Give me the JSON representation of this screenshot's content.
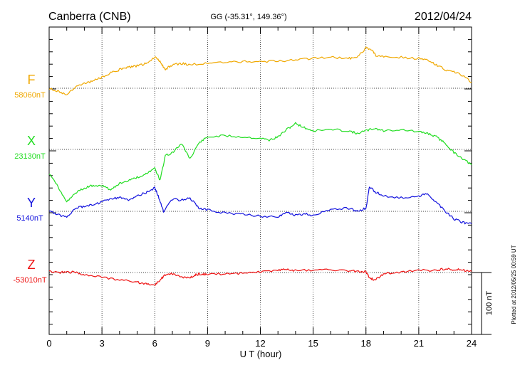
{
  "header": {
    "station": "Canberra (CNB)",
    "coords": "GG (-35.31°, 149.36°)",
    "date": "2012/04/24"
  },
  "footer": {
    "plotted": "Plotted at 2012/05/25 00:59 UT",
    "scale_label": "100 nT"
  },
  "chart_data": {
    "type": "line",
    "title": "Canberra (CNB)",
    "xlabel": "U T (hour)",
    "ylabel": "",
    "xlim": [
      0,
      24
    ],
    "x_ticks": [
      "0",
      "3",
      "6",
      "9",
      "12",
      "15",
      "18",
      "21",
      "24"
    ],
    "grid": true,
    "scale_bar_nT": 100,
    "y_units": "nT (100 nT per scale bar, traces offset by component)",
    "series": [
      {
        "name": "F",
        "baseline_label": "58060nT",
        "color": "#f0a800",
        "baseline_nT": 58060,
        "x": [
          0,
          0.5,
          1,
          1.5,
          2,
          2.5,
          3,
          3.5,
          4,
          4.5,
          5,
          5.5,
          6,
          6.3,
          6.6,
          7,
          7.5,
          8,
          9,
          10,
          11,
          12,
          13,
          14,
          15,
          16,
          17,
          17.5,
          18,
          18.3,
          18.6,
          19,
          20,
          21,
          21.5,
          22,
          22.5,
          23,
          23.5,
          24
        ],
        "values": [
          58060,
          58055,
          58050,
          58062,
          58068,
          58072,
          58078,
          58085,
          58090,
          58094,
          58096,
          58100,
          58110,
          58103,
          58090,
          58098,
          58100,
          58098,
          58100,
          58102,
          58103,
          58103,
          58104,
          58106,
          58108,
          58110,
          58108,
          58110,
          58125,
          58122,
          58112,
          58112,
          58110,
          58108,
          58106,
          58098,
          58090,
          58086,
          58080,
          58070
        ]
      },
      {
        "name": "X",
        "baseline_label": "23130nT",
        "color": "#22dd22",
        "baseline_nT": 23130,
        "x": [
          0,
          0.5,
          1,
          1.5,
          2,
          2.5,
          3,
          3.5,
          4,
          4.5,
          5,
          5.5,
          6,
          6.3,
          6.6,
          7,
          7.5,
          8,
          8.5,
          9,
          10,
          11,
          12,
          12.5,
          13,
          13.5,
          14,
          14.5,
          15,
          16,
          17,
          17.5,
          18,
          18.5,
          19,
          20,
          21,
          21.5,
          22,
          22.5,
          23,
          23.5,
          24
        ],
        "values": [
          23090,
          23070,
          23045,
          23060,
          23068,
          23072,
          23072,
          23064,
          23075,
          23080,
          23085,
          23090,
          23100,
          23080,
          23120,
          23125,
          23140,
          23115,
          23140,
          23150,
          23152,
          23150,
          23148,
          23145,
          23150,
          23162,
          23172,
          23165,
          23160,
          23162,
          23160,
          23156,
          23160,
          23164,
          23160,
          23162,
          23158,
          23156,
          23150,
          23140,
          23125,
          23115,
          23105
        ]
      },
      {
        "name": "Y",
        "baseline_label": "5140nT",
        "color": "#1010dd",
        "baseline_nT": 5140,
        "x": [
          0,
          0.5,
          1,
          1.5,
          2,
          2.5,
          3,
          3.5,
          4,
          4.5,
          5,
          5.5,
          6,
          6.2,
          6.5,
          7,
          7.5,
          8,
          8.5,
          9,
          10,
          11,
          12,
          13,
          13.5,
          14,
          14.5,
          15,
          16,
          17,
          17.5,
          18,
          18.2,
          18.5,
          19,
          20,
          21,
          21.5,
          22,
          22.5,
          23,
          23.5,
          24
        ],
        "values": [
          5140,
          5135,
          5130,
          5145,
          5148,
          5150,
          5155,
          5160,
          5162,
          5158,
          5165,
          5170,
          5178,
          5165,
          5140,
          5160,
          5158,
          5162,
          5145,
          5142,
          5137,
          5136,
          5132,
          5132,
          5138,
          5134,
          5136,
          5133,
          5143,
          5145,
          5140,
          5145,
          5180,
          5172,
          5165,
          5162,
          5165,
          5168,
          5155,
          5140,
          5128,
          5122,
          5120
        ]
      },
      {
        "name": "Z",
        "baseline_label": "-53010nT",
        "color": "#ee1111",
        "baseline_nT": -53010,
        "x": [
          0,
          0.5,
          1,
          1.5,
          2,
          3,
          4,
          5,
          5.5,
          6,
          6.3,
          6.6,
          7,
          7.5,
          8,
          8.3,
          8.6,
          9,
          10,
          11,
          12,
          13,
          13.5,
          14,
          15,
          16,
          17,
          17.5,
          18,
          18.2,
          18.5,
          19,
          20,
          21,
          22,
          22.5,
          23,
          23.5,
          24
        ],
        "values": [
          -53008,
          -53010,
          -53009,
          -53010,
          -53013,
          -53018,
          -53022,
          -53026,
          -53028,
          -53030,
          -53022,
          -53014,
          -53012,
          -53017,
          -53019,
          -53014,
          -53012,
          -53013,
          -53012,
          -53011,
          -53009,
          -53006,
          -53005,
          -53007,
          -53006,
          -53006,
          -53007,
          -53008,
          -53009,
          -53018,
          -53022,
          -53012,
          -53009,
          -53007,
          -53006,
          -53004,
          -53005,
          -53006,
          -53008
        ]
      }
    ]
  }
}
